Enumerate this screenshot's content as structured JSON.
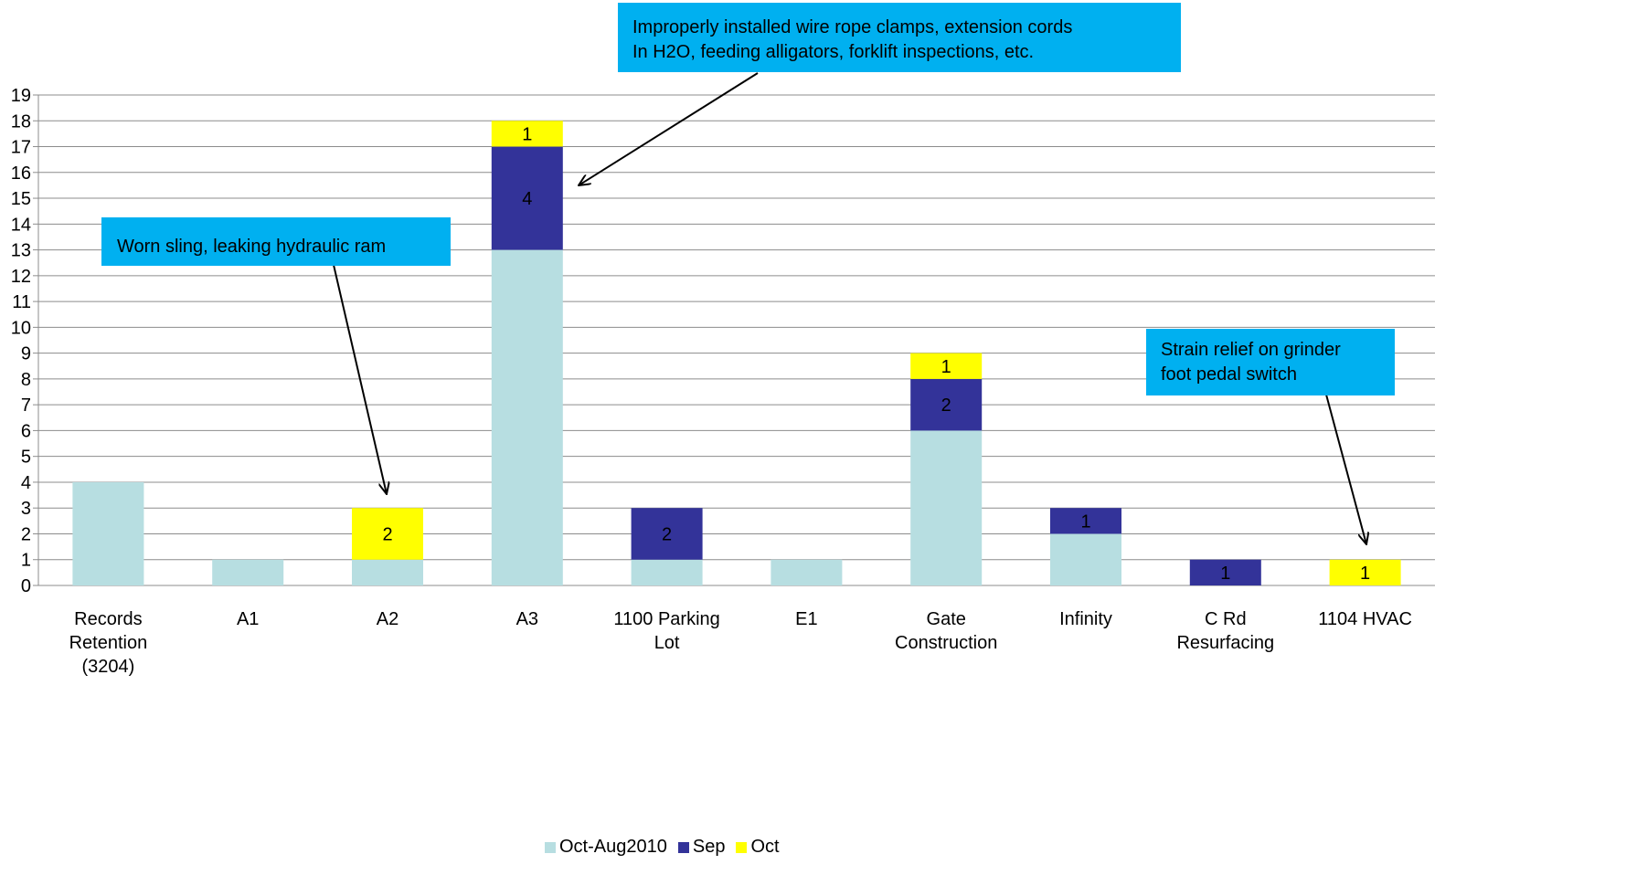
{
  "chart_data": {
    "type": "bar",
    "stacked": true,
    "categories": [
      [
        "Records",
        "Retention",
        "(3204)"
      ],
      [
        "A1"
      ],
      [
        "A2"
      ],
      [
        "A3"
      ],
      [
        "1100 Parking",
        "Lot"
      ],
      [
        "E1"
      ],
      [
        "Gate",
        "Construction"
      ],
      [
        "Infinity"
      ],
      [
        "C Rd",
        "Resurfacing"
      ],
      [
        "1104 HVAC"
      ]
    ],
    "series": [
      {
        "name": "Oct-Aug2010",
        "color": "#b7dee1",
        "values": [
          4,
          1,
          1,
          13,
          1,
          1,
          6,
          2,
          0,
          0
        ],
        "labels": [
          false,
          false,
          false,
          false,
          false,
          false,
          false,
          false,
          false,
          false
        ]
      },
      {
        "name": "Sep",
        "color": "#333399",
        "values": [
          0,
          0,
          0,
          4,
          2,
          0,
          2,
          1,
          1,
          0
        ],
        "labels": [
          false,
          false,
          false,
          true,
          true,
          false,
          true,
          true,
          true,
          false
        ]
      },
      {
        "name": "Oct",
        "color": "#ffff00",
        "values": [
          0,
          0,
          2,
          1,
          0,
          0,
          1,
          0,
          0,
          1
        ],
        "labels": [
          false,
          false,
          true,
          true,
          false,
          false,
          true,
          false,
          false,
          true
        ]
      }
    ],
    "ylim": [
      0,
      19
    ],
    "yticks": [
      "0",
      "1",
      "2",
      "3",
      "4",
      "5",
      "6",
      "7",
      "8",
      "9",
      "10",
      "11",
      "12",
      "13",
      "14",
      "15",
      "16",
      "17",
      "18",
      "19"
    ],
    "grid": true,
    "legend": "bottom",
    "annotations": [
      {
        "lines": [
          "Improperly installed  wire rope clamps, extension cords",
          "In H2O, feeding alligators, forklift inspections, etc."
        ],
        "target_category": 3
      },
      {
        "lines": [
          "Worn sling, leaking hydraulic ram"
        ],
        "target_category": 2
      },
      {
        "lines": [
          "Strain relief on grinder",
          "foot pedal  switch"
        ],
        "target_category": 9
      }
    ]
  }
}
